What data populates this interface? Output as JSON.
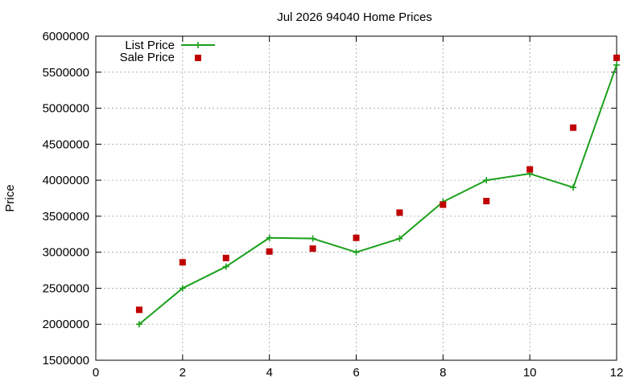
{
  "chart_data": {
    "type": "line",
    "title": "Jul 2026 94040 Home Prices",
    "xlabel": "",
    "ylabel": "Price",
    "xlim": [
      0,
      12
    ],
    "ylim": [
      1500000,
      6000000
    ],
    "x_ticks": [
      0,
      2,
      4,
      6,
      8,
      10,
      12
    ],
    "y_ticks": [
      1500000,
      2000000,
      2500000,
      3000000,
      3500000,
      4000000,
      4500000,
      5000000,
      5500000,
      6000000
    ],
    "grid": true,
    "legend_position": "top-left",
    "series": [
      {
        "name": "List Price",
        "style": "line+cross-markers",
        "color": "#1aa01a",
        "x": [
          1,
          2,
          3,
          4,
          5,
          6,
          7,
          8,
          9,
          10,
          11,
          12
        ],
        "values": [
          2000000,
          2500000,
          2800000,
          3200000,
          3190000,
          3000000,
          3190000,
          3700000,
          4000000,
          4090000,
          3900000,
          5600000
        ]
      },
      {
        "name": "Sale Price",
        "style": "square-markers",
        "color": "#c00000",
        "x": [
          1,
          2,
          3,
          4,
          5,
          6,
          7,
          8,
          9,
          10,
          11,
          12
        ],
        "values": [
          2200000,
          2860000,
          2920000,
          3010000,
          3050000,
          3200000,
          3550000,
          3660000,
          3710000,
          4150000,
          4730000,
          5700000
        ]
      }
    ]
  }
}
